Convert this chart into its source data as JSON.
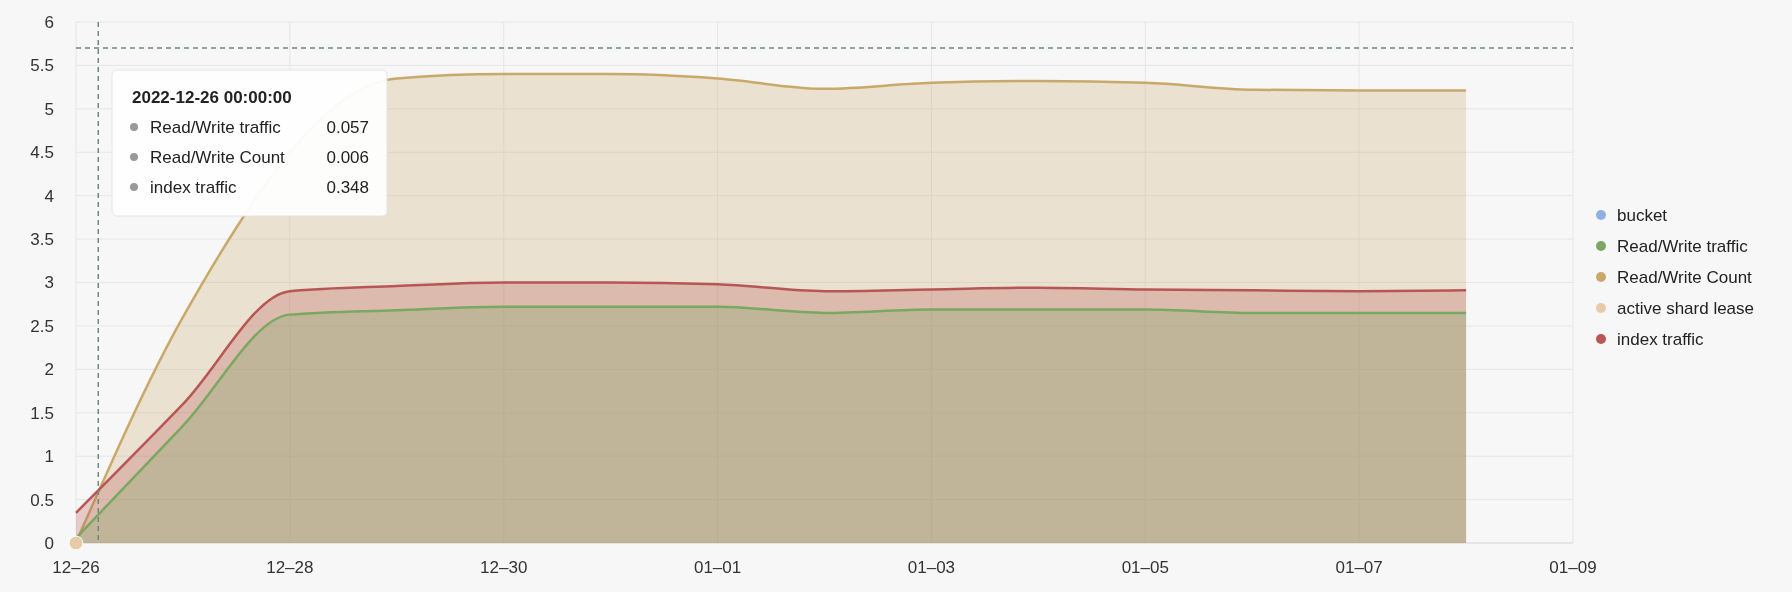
{
  "chart_data": {
    "type": "area",
    "x": [
      "2022-12-26",
      "2022-12-27",
      "2022-12-28",
      "2022-12-29",
      "2022-12-30",
      "2022-12-31",
      "2023-01-01",
      "2023-01-02",
      "2023-01-03",
      "2023-01-04",
      "2023-01-05",
      "2023-01-06",
      "2023-01-07",
      "2023-01-08"
    ],
    "series": [
      {
        "name": "bucket",
        "color": "#8fb0e0",
        "values": [
          null,
          null,
          null,
          null,
          null,
          null,
          null,
          null,
          null,
          null,
          null,
          null,
          null,
          null
        ]
      },
      {
        "name": "Read/Write Count",
        "color": "#c9a96a",
        "values": [
          0.006,
          2.6,
          null,
          5.35,
          5.4,
          5.4,
          5.35,
          5.23,
          5.3,
          5.32,
          5.3,
          5.22,
          5.21,
          5.21
        ]
      },
      {
        "name": "active shard lease",
        "type": "scatter",
        "marker": "circle",
        "color": "#e8c9a8",
        "values": [
          0,
          null,
          null,
          null,
          null,
          null,
          null,
          null,
          null,
          null,
          null,
          null,
          null,
          null
        ]
      },
      {
        "name": "index traffic",
        "color": "#b85656",
        "values": [
          0.348,
          1.6,
          2.9,
          2.96,
          3.0,
          3.0,
          2.98,
          2.9,
          2.92,
          2.94,
          2.92,
          2.91,
          2.9,
          2.91
        ]
      },
      {
        "name": "Read/Write traffic",
        "color": "#7aa860",
        "values": [
          0.057,
          1.35,
          2.63,
          2.68,
          2.72,
          2.72,
          2.72,
          2.65,
          2.69,
          2.69,
          2.69,
          2.65,
          2.65,
          2.65
        ]
      }
    ],
    "xlim": [
      "2022-12-26",
      "2023-01-09"
    ],
    "xticks": [
      {
        "value": "2022-12-26",
        "label": "12–26"
      },
      {
        "value": "2022-12-28",
        "label": "12–28"
      },
      {
        "value": "2022-12-30",
        "label": "12–30"
      },
      {
        "value": "2023-01-01",
        "label": "01–01"
      },
      {
        "value": "2023-01-03",
        "label": "01–03"
      },
      {
        "value": "2023-01-05",
        "label": "01–05"
      },
      {
        "value": "2023-01-07",
        "label": "01–07"
      },
      {
        "value": "2023-01-09",
        "label": "01–09"
      }
    ],
    "ylim": [
      0,
      6
    ],
    "yticks": [
      0,
      0.5,
      1,
      1.5,
      2,
      2.5,
      3,
      3.5,
      4,
      4.5,
      5,
      5.5,
      6
    ],
    "grid": true,
    "legend": "right",
    "marker": "none",
    "ref_lines": [
      {
        "axis": "y",
        "value": 5.7,
        "line_style": "dashed",
        "color": "#6a8a7a"
      },
      {
        "axis": "x",
        "value": "2022-12-26T05:00",
        "line_style": "dashed",
        "color": "#6a8a7a"
      }
    ],
    "annotations": [
      "2022-12-26 00:00:00",
      "Read/Write traffic 0.057",
      "Read/Write Count 0.006",
      "index traffic 0.348"
    ]
  }
}
